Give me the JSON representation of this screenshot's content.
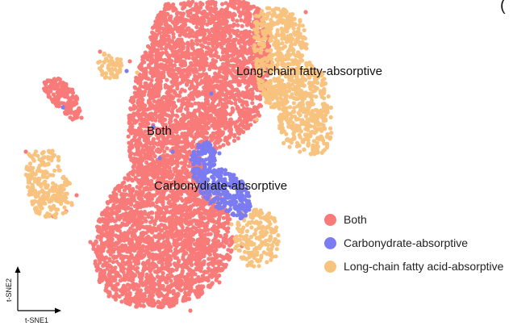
{
  "panel_letter": "(",
  "chart_data": {
    "type": "scatter",
    "title": "",
    "xlabel": "t-SNE1",
    "ylabel": "t-SNE2",
    "legend_position": "right",
    "grid": false,
    "cluster_labels": [
      {
        "text": "Long-chain fatty-absorptive",
        "series": "Long-chain fatty acid-absorptive"
      },
      {
        "text": "Both",
        "series": "Both"
      },
      {
        "text": "Carbonydrate-absorptive",
        "series": "Carbonydrate-absorptive"
      }
    ],
    "series": [
      {
        "name": "Both",
        "color": "#f87a79",
        "approx_cells": 5600
      },
      {
        "name": "Carbonydrate-absorptive",
        "color": "#7b7bf2",
        "approx_cells": 420
      },
      {
        "name": "Long-chain fatty acid-absorptive",
        "color": "#f8c27f",
        "approx_cells": 1500
      }
    ]
  }
}
